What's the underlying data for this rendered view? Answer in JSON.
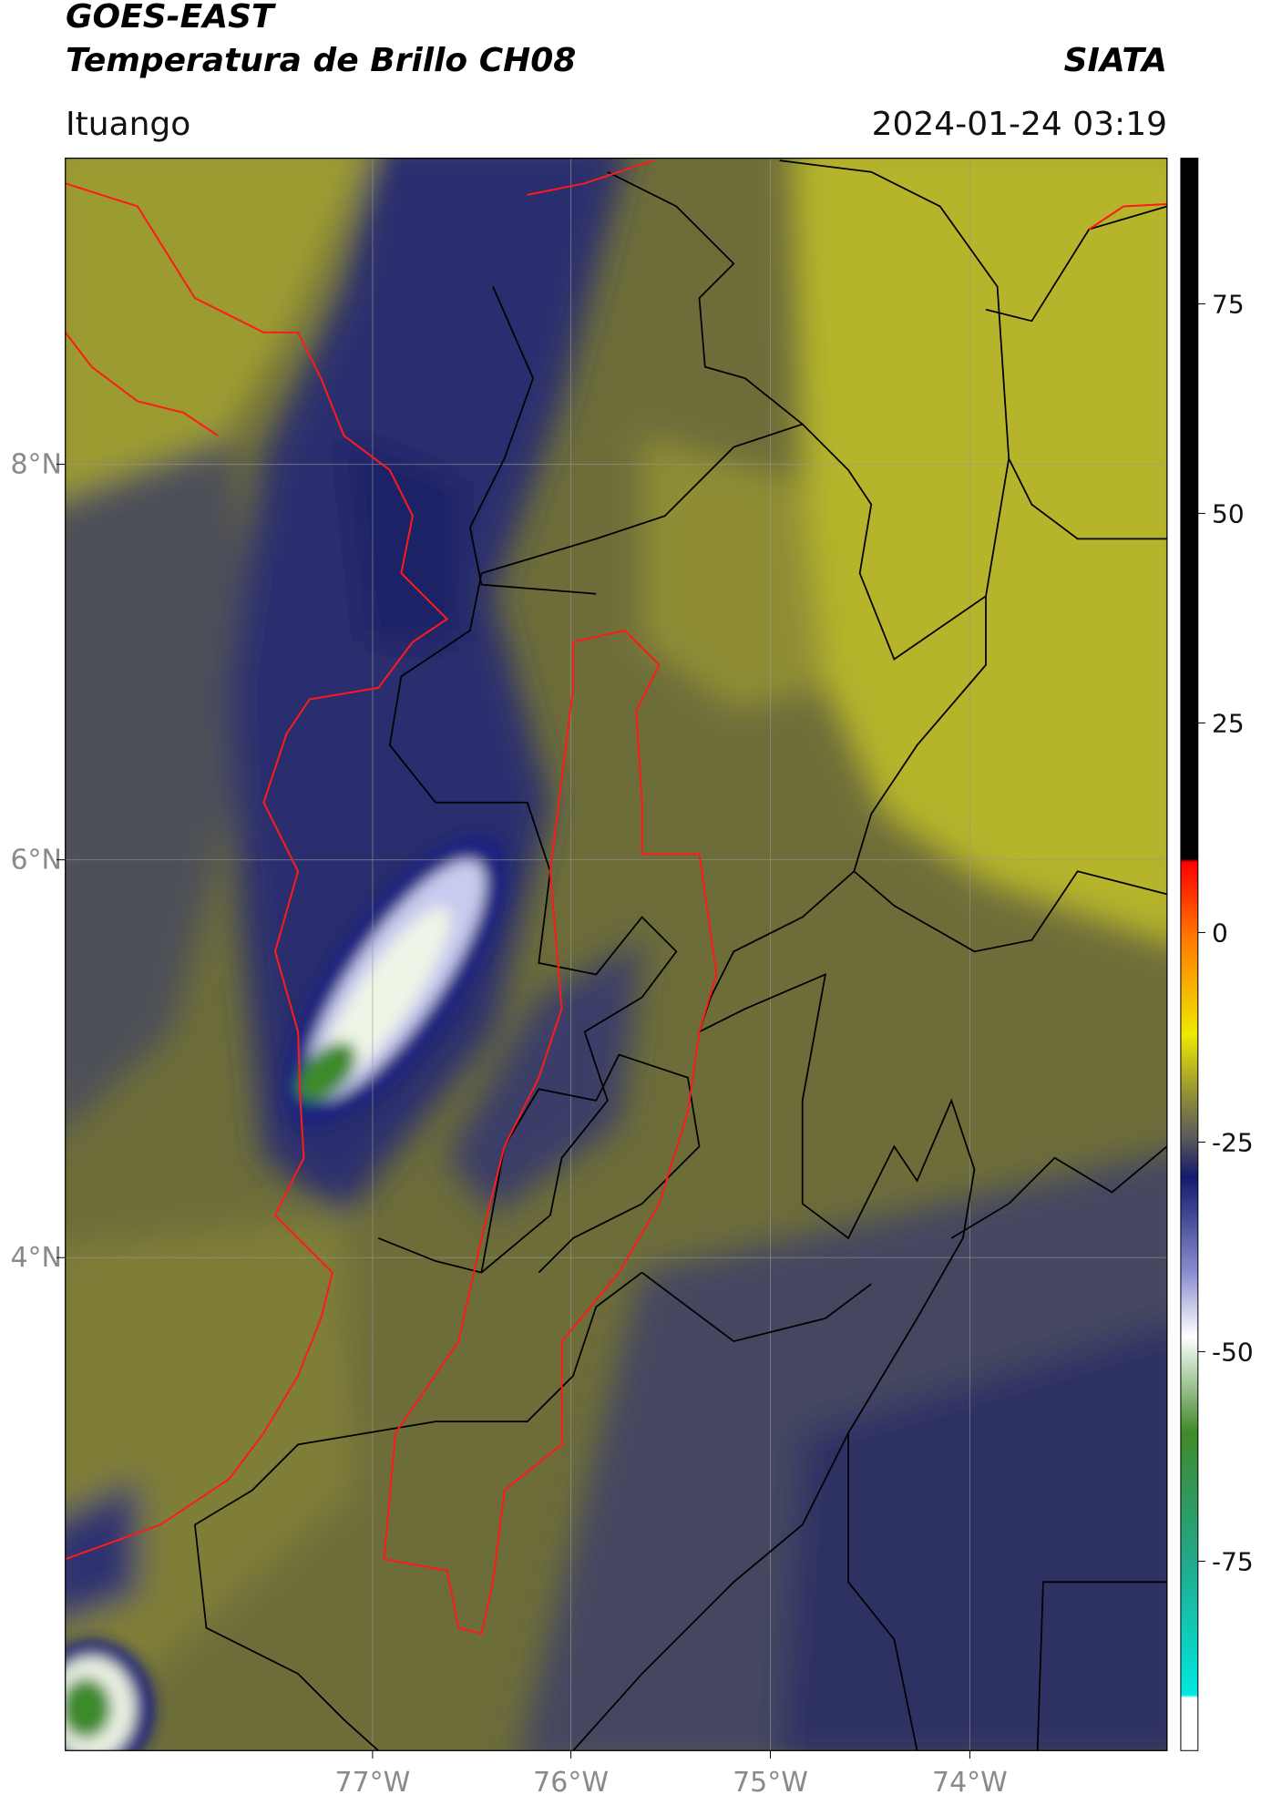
{
  "header": {
    "title_line1": "GOES-EAST",
    "title_line2": "Temperatura de Brillo CH08",
    "organization": "SIATA",
    "location": "Ituango",
    "datetime": "2024-01-24 03:19"
  },
  "map": {
    "lat_labels": [
      "8°N",
      "6°N",
      "4°N"
    ],
    "lon_labels": [
      "77°W",
      "76°W",
      "75°W",
      "74°W"
    ]
  },
  "colorbar": {
    "ticks": [
      "75",
      "50",
      "25",
      "0",
      "-25",
      "-50",
      "-75"
    ]
  }
}
